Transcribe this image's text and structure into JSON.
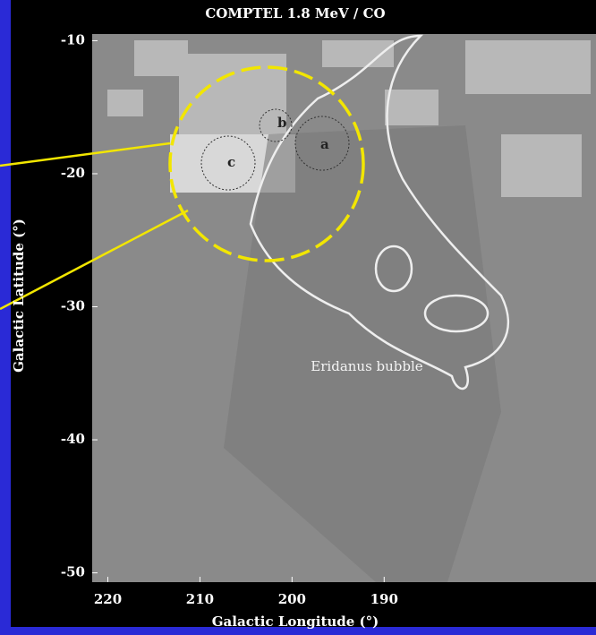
{
  "chart_data": {
    "type": "image",
    "title": "COMPTEL 1.8 MeV   / CO",
    "x_label": "Galactic Longitude (°)",
    "y_label": "Galactic Latitude (°)",
    "annotations": [
      "Eridanus bubble",
      "b",
      "c",
      "a"
    ],
    "xlim": [
      221.7,
      167
    ],
    "xticks": [
      220,
      210,
      200,
      190
    ],
    "ylim": [
      -9.5,
      -50.7
    ],
    "yticks": [
      -10,
      -20,
      -30,
      -40,
      -50
    ]
  }
}
